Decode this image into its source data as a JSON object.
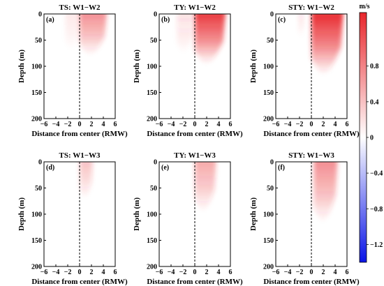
{
  "colorbar": {
    "unit": "m/s",
    "ticks": [
      0.8,
      0.4,
      0,
      -0.4,
      -0.8,
      -1.2
    ],
    "tick_labels": [
      "0.8",
      "0.4",
      "0",
      "−0.4",
      "−0.8",
      "−1.2"
    ],
    "range": [
      -1.4,
      1.4
    ],
    "colors": {
      "positive": "#e8262b",
      "zero": "#ffffff",
      "negative": "#0a14e6"
    }
  },
  "chart_data": [
    {
      "type": "heatmap",
      "panel": "(a)",
      "title": "TS: W1−W2",
      "xlabel": "Distance from center (RMW)",
      "ylabel": "Depth (m)",
      "xlim": [
        -6,
        6
      ],
      "ylim": [
        200,
        0
      ],
      "x_ticks": [
        "−6",
        "−4",
        "−2",
        "0",
        "2",
        "4",
        "6"
      ],
      "y_ticks": [
        "0",
        "50",
        "100",
        "150",
        "200"
      ],
      "blobs": [
        {
          "x_range": [
            0,
            4.6
          ],
          "depth_max": 78,
          "peak_value": 0.45
        },
        {
          "x_range": [
            -2.4,
            0
          ],
          "depth_max": 70,
          "peak_value": 0.08
        }
      ]
    },
    {
      "type": "heatmap",
      "panel": "(b)",
      "title": "TY: W1−W2",
      "xlabel": "Distance from center (RMW)",
      "ylabel": "Depth (m)",
      "xlim": [
        -6,
        6
      ],
      "ylim": [
        200,
        0
      ],
      "x_ticks": [
        "−6",
        "−4",
        "−2",
        "0",
        "2",
        "4",
        "6"
      ],
      "y_ticks": [
        "0",
        "50",
        "100",
        "150",
        "200"
      ],
      "blobs": [
        {
          "x_range": [
            0,
            5.2
          ],
          "depth_max": 95,
          "peak_value": 0.8
        },
        {
          "x_range": [
            -3.0,
            -0.2
          ],
          "depth_max": 75,
          "peak_value": 0.12
        }
      ]
    },
    {
      "type": "heatmap",
      "panel": "(c)",
      "title": "STY: W1−W2",
      "xlabel": "Distance from center (RMW)",
      "ylabel": "Depth (m)",
      "xlim": [
        -6,
        6
      ],
      "ylim": [
        200,
        0
      ],
      "x_ticks": [
        "−6",
        "−4",
        "−2",
        "0",
        "2",
        "4",
        "6"
      ],
      "y_ticks": [
        "0",
        "50",
        "100",
        "150",
        "200"
      ],
      "blobs": [
        {
          "x_range": [
            0,
            5.4
          ],
          "depth_max": 115,
          "peak_value": 0.85
        },
        {
          "x_range": [
            -2.2,
            -1.2
          ],
          "depth_max": 45,
          "peak_value": 0.1
        }
      ]
    },
    {
      "type": "heatmap",
      "panel": "(d)",
      "title": "TS: W1−W3",
      "xlabel": "Distance from center (RMW)",
      "ylabel": "Depth (m)",
      "xlim": [
        -6,
        6
      ],
      "ylim": [
        200,
        0
      ],
      "x_ticks": [
        "−6",
        "−4",
        "−2",
        "0",
        "2",
        "4",
        "6"
      ],
      "y_ticks": [
        "0",
        "50",
        "100",
        "150",
        "200"
      ],
      "blobs": [
        {
          "x_range": [
            0,
            2.2
          ],
          "depth_max": 70,
          "peak_value": 0.25
        }
      ]
    },
    {
      "type": "heatmap",
      "panel": "(e)",
      "title": "TY: W1−W3",
      "xlabel": "Distance from center (RMW)",
      "ylabel": "Depth (m)",
      "xlim": [
        -6,
        6
      ],
      "ylim": [
        200,
        0
      ],
      "x_ticks": [
        "−6",
        "−4",
        "−2",
        "0",
        "2",
        "4",
        "6"
      ],
      "y_ticks": [
        "0",
        "50",
        "100",
        "150",
        "200"
      ],
      "blobs": [
        {
          "x_range": [
            0,
            3.6
          ],
          "depth_max": 95,
          "peak_value": 0.35
        }
      ]
    },
    {
      "type": "heatmap",
      "panel": "(f)",
      "title": "STY: W1−W3",
      "xlabel": "Distance from center (RMW)",
      "ylabel": "Depth (m)",
      "xlim": [
        -6,
        6
      ],
      "ylim": [
        200,
        0
      ],
      "x_ticks": [
        "−6",
        "−4",
        "−2",
        "0",
        "2",
        "4",
        "6"
      ],
      "y_ticks": [
        "0",
        "50",
        "100",
        "150",
        "200"
      ],
      "blobs": [
        {
          "x_range": [
            0.4,
            4.4
          ],
          "depth_max": 115,
          "peak_value": 0.45
        }
      ]
    }
  ]
}
